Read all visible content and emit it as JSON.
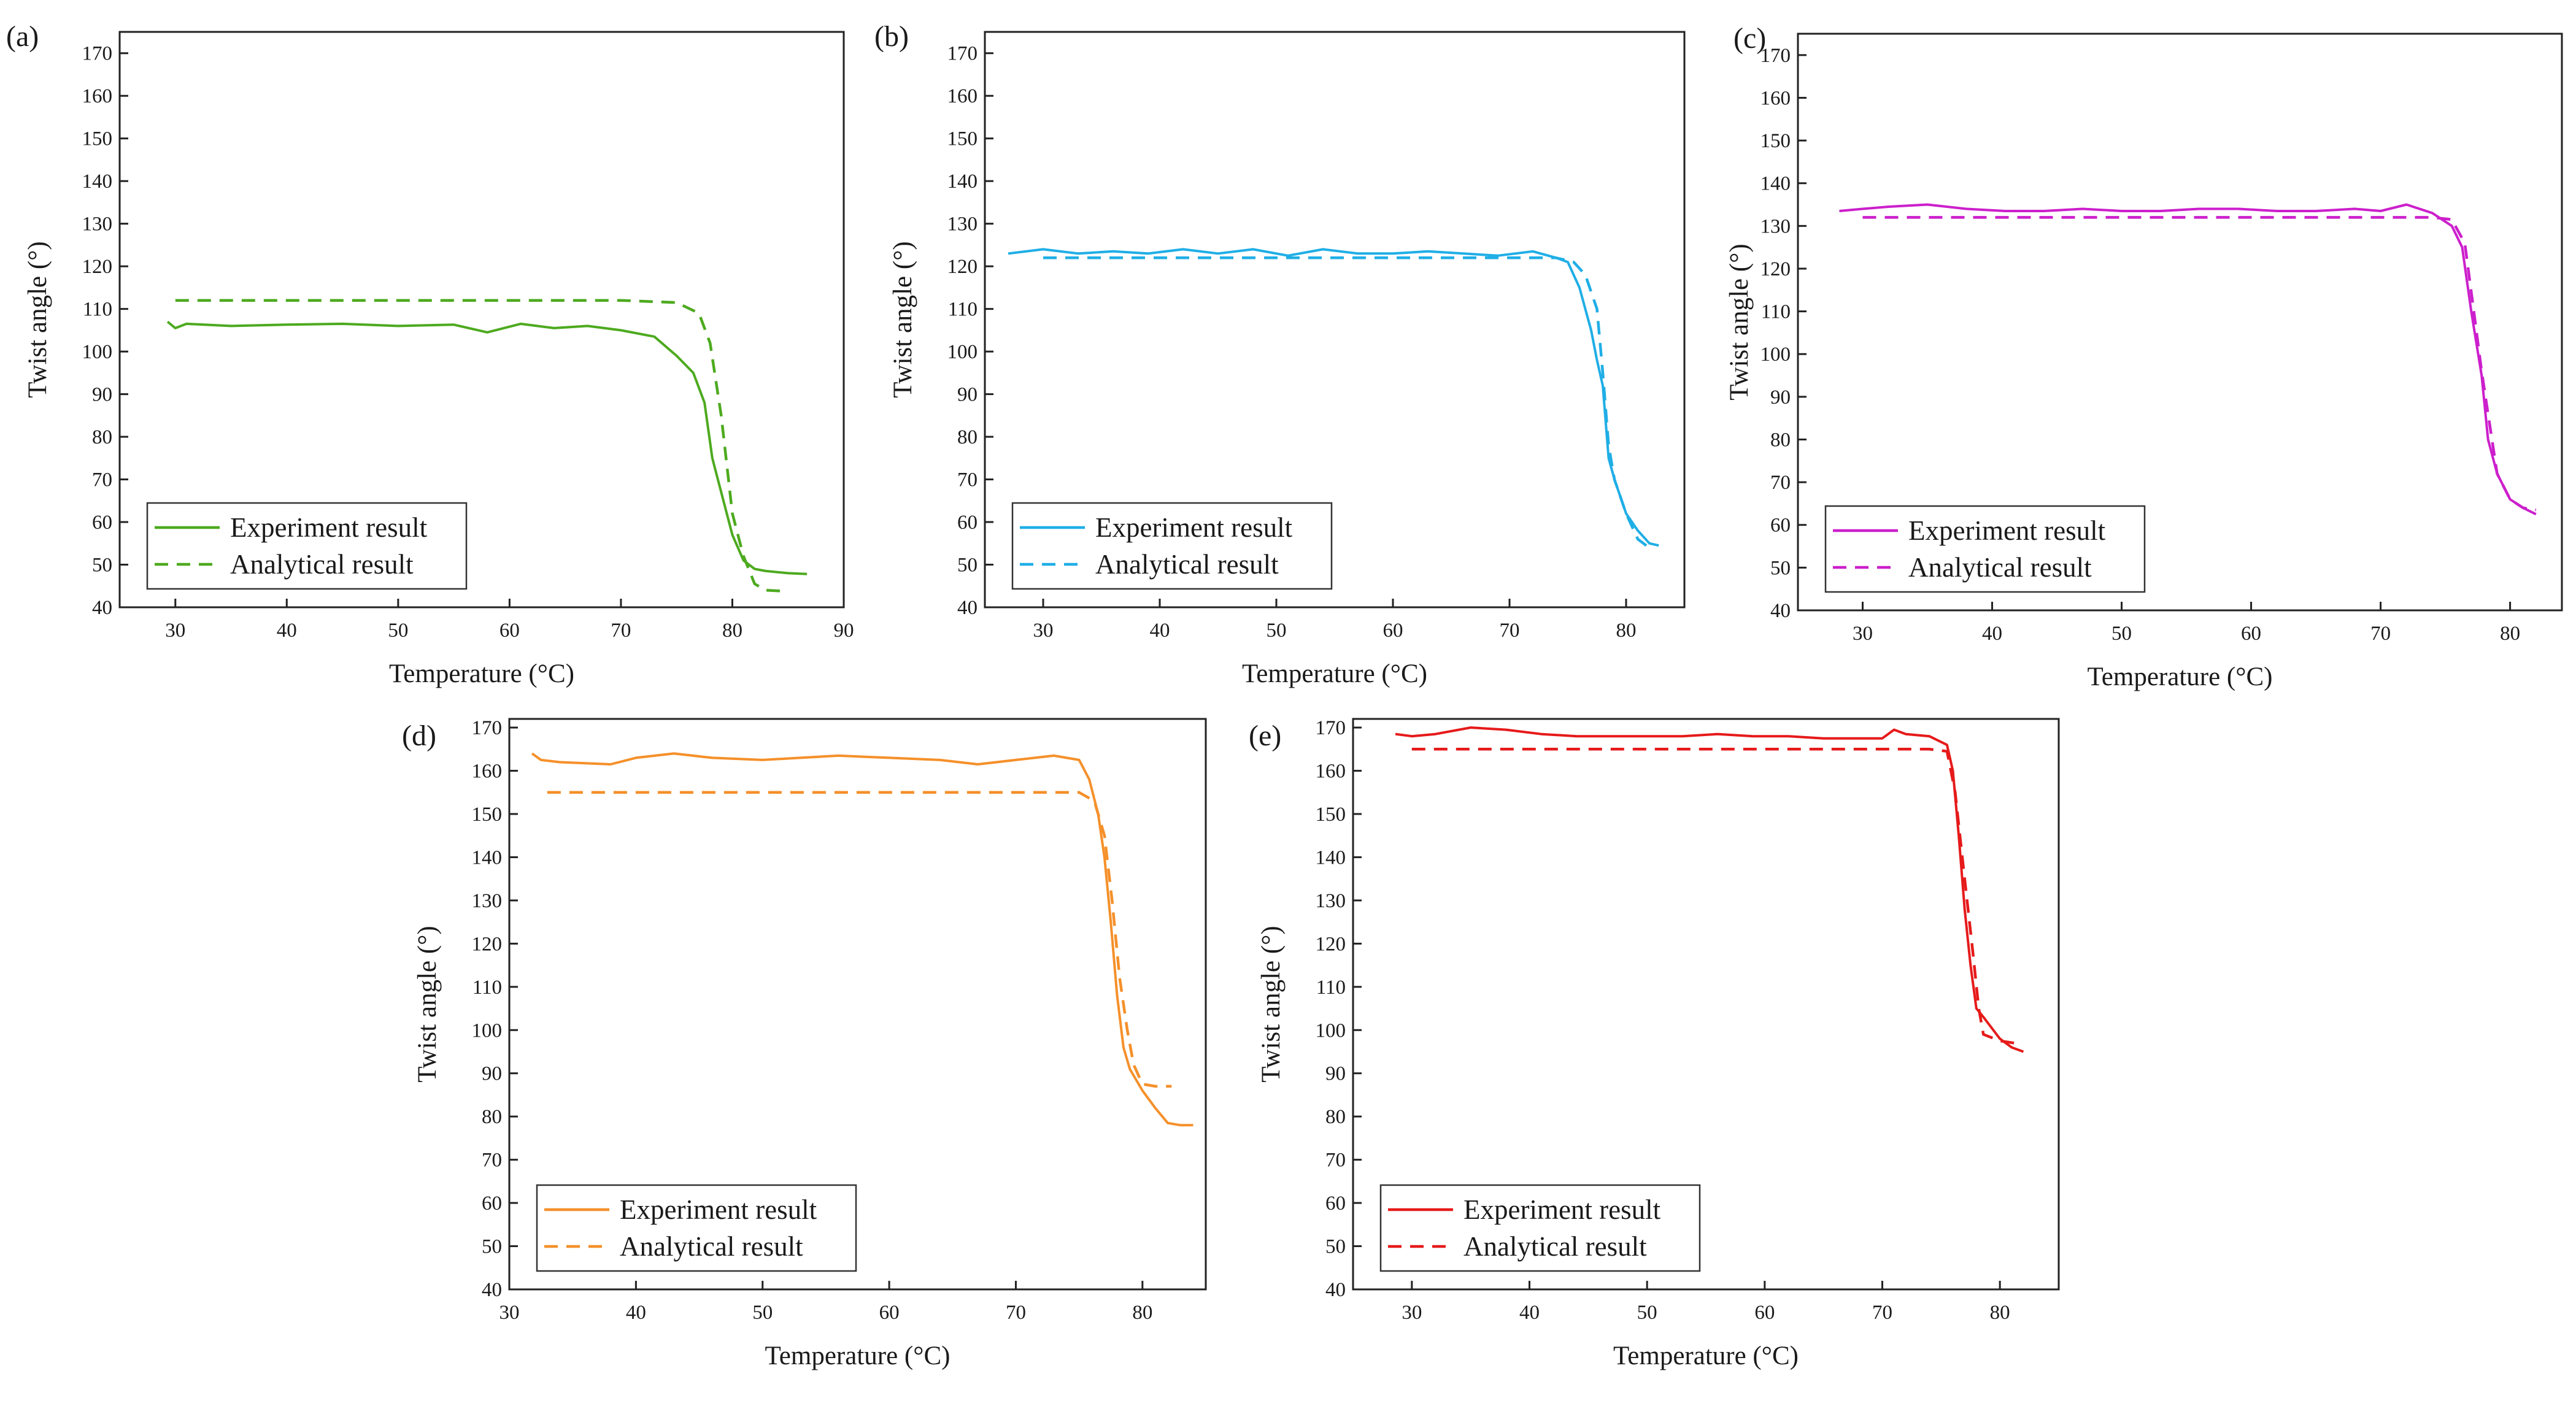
{
  "chart_data": [
    {
      "type": "line",
      "panel_label": "(a)",
      "xlabel": "Temperature (°C)",
      "ylabel": "Twist angle (°)",
      "xlim": [
        25,
        90
      ],
      "ylim": [
        40,
        175
      ],
      "xticks": [
        30,
        40,
        50,
        60,
        70,
        80,
        90
      ],
      "yticks": [
        40,
        50,
        60,
        70,
        80,
        90,
        100,
        110,
        120,
        130,
        140,
        150,
        160,
        170
      ],
      "legend_position": "bottom-left",
      "color": "#4daa1f",
      "series": [
        {
          "name": "Experiment result",
          "style": "solid",
          "x": [
            29.3,
            30,
            31,
            35,
            40,
            45,
            50,
            55,
            58,
            61,
            64,
            67,
            70,
            73,
            75,
            76.5,
            77.5,
            78.2,
            79,
            80,
            81,
            82,
            83,
            85,
            86.7
          ],
          "y": [
            107,
            105.5,
            106.5,
            106,
            106.3,
            106.5,
            106,
            106.3,
            104.5,
            106.5,
            105.5,
            106,
            105,
            103.5,
            99,
            95,
            88,
            75,
            67,
            57,
            51,
            49,
            48.5,
            48,
            47.8
          ]
        },
        {
          "name": "Analytical result",
          "style": "dashed",
          "x": [
            30,
            40,
            50,
            60,
            70,
            75,
            77,
            78,
            79,
            80,
            81,
            82,
            83,
            84.5
          ],
          "y": [
            112,
            112,
            112,
            112,
            112,
            111.5,
            109,
            102,
            85,
            62,
            52,
            45.5,
            44,
            43.8
          ]
        }
      ]
    },
    {
      "type": "line",
      "panel_label": "(b)",
      "xlabel": "Temperature (°C)",
      "ylabel": "Twist angle (°)",
      "xlim": [
        25,
        85
      ],
      "ylim": [
        40,
        175
      ],
      "xticks": [
        30,
        40,
        50,
        60,
        70,
        80
      ],
      "yticks": [
        40,
        50,
        60,
        70,
        80,
        90,
        100,
        110,
        120,
        130,
        140,
        150,
        160,
        170
      ],
      "legend_position": "bottom-left",
      "color": "#1faee6",
      "series": [
        {
          "name": "Experiment result",
          "style": "solid",
          "x": [
            27,
            30,
            33,
            36,
            39,
            42,
            45,
            48,
            51,
            54,
            57,
            60,
            63,
            66,
            69,
            72,
            74,
            75,
            76,
            77,
            77.5,
            78,
            78.5,
            78.8,
            79,
            79.5,
            80,
            81,
            82,
            82.8
          ],
          "y": [
            123,
            124,
            123,
            123.5,
            123,
            124,
            123,
            124,
            122.5,
            124,
            123,
            123,
            123.5,
            123,
            122.5,
            123.5,
            122,
            121,
            115,
            105,
            98,
            92,
            75,
            72,
            70,
            66,
            62,
            58,
            55,
            54.5
          ]
        },
        {
          "name": "Analytical result",
          "style": "dashed",
          "x": [
            30,
            40,
            50,
            60,
            70,
            74,
            75.5,
            76.5,
            77.5,
            78,
            78.5,
            79,
            80,
            81,
            82.2
          ],
          "y": [
            122,
            122,
            122,
            122,
            122,
            122,
            121,
            118,
            110,
            95,
            78,
            70,
            62,
            56,
            53.5
          ]
        }
      ]
    },
    {
      "type": "line",
      "panel_label": "(c)",
      "xlabel": "Temperature (°C)",
      "ylabel": "Twist angle (°)",
      "xlim": [
        25,
        84
      ],
      "ylim": [
        40,
        175
      ],
      "xticks": [
        30,
        40,
        50,
        60,
        70,
        80
      ],
      "yticks": [
        40,
        50,
        60,
        70,
        80,
        90,
        100,
        110,
        120,
        130,
        140,
        150,
        160,
        170
      ],
      "legend_position": "bottom-left",
      "color": "#cc1fcc",
      "series": [
        {
          "name": "Experiment result",
          "style": "solid",
          "x": [
            28.2,
            30,
            32,
            35,
            38,
            41,
            44,
            47,
            50,
            53,
            56,
            59,
            62,
            65,
            68,
            70,
            72,
            74,
            75.5,
            76.3,
            77,
            77.8,
            78.3,
            79,
            80,
            81,
            82
          ],
          "y": [
            133.5,
            134,
            134.5,
            135,
            134,
            133.5,
            133.5,
            134,
            133.5,
            133.5,
            134,
            134,
            133.5,
            133.5,
            134,
            133.5,
            135,
            133,
            130,
            125,
            110,
            95,
            80,
            72,
            66,
            64,
            62.5
          ]
        },
        {
          "name": "Analytical result",
          "style": "dashed",
          "x": [
            30,
            40,
            50,
            60,
            70,
            74,
            75.5,
            76.5,
            77.2,
            77.8,
            78.3,
            79,
            80,
            81,
            82
          ],
          "y": [
            132,
            132,
            132,
            132,
            132,
            132,
            131.5,
            126,
            110,
            96,
            86,
            72,
            66,
            64,
            63.5
          ]
        }
      ]
    },
    {
      "type": "line",
      "panel_label": "(d)",
      "xlabel": "Temperature (°C)",
      "ylabel": "Twist angle (°)",
      "xlim": [
        30,
        85
      ],
      "ylim": [
        40,
        172
      ],
      "xticks": [
        30,
        40,
        50,
        60,
        70,
        80
      ],
      "yticks": [
        40,
        50,
        60,
        70,
        80,
        90,
        100,
        110,
        120,
        130,
        140,
        150,
        160,
        170
      ],
      "legend_position": "bottom-left",
      "color": "#f5902a",
      "series": [
        {
          "name": "Experiment result",
          "style": "solid",
          "x": [
            31.8,
            32.5,
            34,
            38,
            40,
            43,
            46,
            50,
            53,
            56,
            60,
            64,
            67,
            70,
            73,
            75,
            75.8,
            76.5,
            77,
            77.5,
            78,
            78.5,
            79,
            80,
            81,
            82,
            83,
            84
          ],
          "y": [
            164,
            162.5,
            162,
            161.5,
            163,
            164,
            163,
            162.5,
            163,
            163.5,
            163,
            162.5,
            161.5,
            162.5,
            163.5,
            162.5,
            158,
            150,
            140,
            125,
            108,
            96,
            91,
            86,
            82,
            78.5,
            78,
            78
          ]
        },
        {
          "name": "Analytical result",
          "style": "dashed",
          "x": [
            33,
            40,
            50,
            60,
            70,
            75,
            76.2,
            77,
            77.6,
            78.2,
            78.8,
            79.3,
            80,
            81,
            82.3
          ],
          "y": [
            155,
            155,
            155,
            155,
            155,
            155,
            153,
            145,
            130,
            112,
            100,
            92,
            87.5,
            87,
            87
          ]
        }
      ]
    },
    {
      "type": "line",
      "panel_label": "(e)",
      "xlabel": "Temperature (°C)",
      "ylabel": "Twist angle (°)",
      "xlim": [
        25,
        85
      ],
      "ylim": [
        40,
        172
      ],
      "xticks": [
        30,
        40,
        50,
        60,
        70,
        80
      ],
      "yticks": [
        40,
        50,
        60,
        70,
        80,
        90,
        100,
        110,
        120,
        130,
        140,
        150,
        160,
        170
      ],
      "legend_position": "bottom-left",
      "color": "#e61a1a",
      "series": [
        {
          "name": "Experiment result",
          "style": "solid",
          "x": [
            28.6,
            30,
            32,
            35,
            38,
            41,
            44,
            47,
            50,
            53,
            56,
            59,
            62,
            65,
            68,
            70,
            71,
            72,
            74,
            75.5,
            76,
            76.5,
            77,
            77.5,
            78,
            78.6,
            80,
            81,
            82
          ],
          "y": [
            168.5,
            168,
            168.5,
            170,
            169.5,
            168.5,
            168,
            168,
            168,
            168,
            168.5,
            168,
            168,
            167.5,
            167.5,
            167.5,
            169.5,
            168.5,
            168,
            166,
            160,
            145,
            128,
            115,
            105,
            103,
            98,
            96,
            95
          ]
        },
        {
          "name": "Analytical result",
          "style": "dashed",
          "x": [
            30,
            40,
            50,
            60,
            70,
            74,
            75.5,
            76.2,
            77,
            77.7,
            78.2,
            78.6,
            80,
            81.2
          ],
          "y": [
            165,
            165,
            165,
            165,
            165,
            165,
            164.5,
            155,
            135,
            118,
            105,
            99,
            97.5,
            97
          ]
        }
      ]
    }
  ]
}
